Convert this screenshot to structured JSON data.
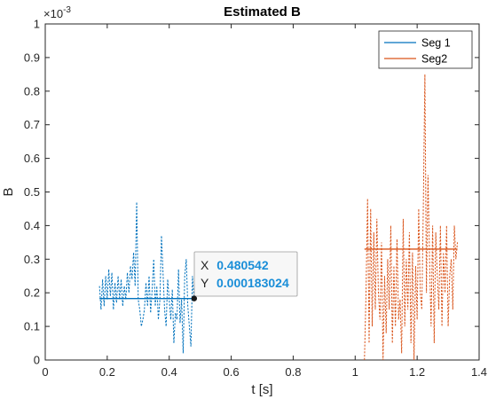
{
  "colors": {
    "series1": "#0072BD",
    "series2": "#D95319",
    "axis": "#262626",
    "datatip_value": "#1a8ed8"
  },
  "chart_data": {
    "type": "line",
    "title": "Estimated B",
    "xlabel": "t [s]",
    "ylabel": "B",
    "y_exponent_label": "×10",
    "y_exponent": "-3",
    "xlim": [
      0,
      1.4
    ],
    "ylim": [
      0,
      0.001
    ],
    "xticks": [
      0,
      0.2,
      0.4,
      0.6,
      0.8,
      1,
      1.2,
      1.4
    ],
    "xtick_labels": [
      "0",
      "0.2",
      "0.4",
      "0.6",
      "0.8",
      "1",
      "1.2",
      "1.4"
    ],
    "yticks": [
      0,
      0.0001,
      0.0002,
      0.0003,
      0.0004,
      0.0005,
      0.0006,
      0.0007,
      0.0008,
      0.0009,
      0.001
    ],
    "ytick_labels": [
      "0",
      "0.1",
      "0.2",
      "0.3",
      "0.4",
      "0.5",
      "0.6",
      "0.7",
      "0.8",
      "0.9",
      "1"
    ],
    "grid": false,
    "legend_position": "top-right",
    "legend": [
      "Seg 1",
      "Seg2"
    ],
    "series": [
      {
        "name": "Seg 1",
        "color_key": "series1",
        "mean_line": {
          "x": [
            0.175,
            0.48
          ],
          "y": [
            0.000183,
            0.000183
          ]
        },
        "dashed": {
          "x": [
            0.175,
            0.18,
            0.185,
            0.19,
            0.195,
            0.2,
            0.205,
            0.21,
            0.215,
            0.22,
            0.225,
            0.23,
            0.235,
            0.24,
            0.245,
            0.25,
            0.255,
            0.26,
            0.265,
            0.27,
            0.275,
            0.28,
            0.285,
            0.29,
            0.295,
            0.3,
            0.305,
            0.31,
            0.315,
            0.32,
            0.325,
            0.33,
            0.335,
            0.34,
            0.345,
            0.35,
            0.355,
            0.36,
            0.365,
            0.37,
            0.375,
            0.38,
            0.385,
            0.39,
            0.395,
            0.4,
            0.405,
            0.41,
            0.415,
            0.42,
            0.425,
            0.43,
            0.435,
            0.44,
            0.445,
            0.45,
            0.455,
            0.46,
            0.465,
            0.47,
            0.475,
            0.48
          ],
          "y": [
            0.00022,
            0.00015,
            0.00024,
            0.00016,
            0.00025,
            0.00018,
            0.00027,
            0.00019,
            0.00026,
            0.00015,
            0.00023,
            0.00017,
            0.00025,
            0.00018,
            0.00024,
            0.00016,
            0.00022,
            0.00018,
            0.00026,
            0.0002,
            0.00028,
            0.00024,
            0.00032,
            0.00022,
            0.00047,
            0.00018,
            0.00015,
            0.0001,
            0.00012,
            0.00015,
            0.00023,
            0.00016,
            0.00025,
            0.00014,
            0.00021,
            0.0003,
            0.00016,
            0.00022,
            0.00012,
            0.00018,
            0.00037,
            0.00026,
            0.00015,
            0.0001,
            0.00024,
            0.00018,
            0.00012,
            0.00021,
            5e-05,
            0.00014,
            0.00012,
            0.00027,
            0.00011,
            0.00018,
            2e-05,
            0.00025,
            0.0003,
            0.00016,
            0.0001,
            4e-05,
            0.00025,
            0.00018
          ]
        }
      },
      {
        "name": "Seg2",
        "color_key": "series2",
        "mean_line": {
          "x": [
            1.03,
            1.33
          ],
          "y": [
            0.00033,
            0.00033
          ]
        },
        "dashed": {
          "x": [
            1.03,
            1.035,
            1.04,
            1.045,
            1.05,
            1.055,
            1.06,
            1.065,
            1.07,
            1.075,
            1.08,
            1.085,
            1.09,
            1.095,
            1.1,
            1.105,
            1.11,
            1.115,
            1.12,
            1.125,
            1.13,
            1.135,
            1.14,
            1.145,
            1.15,
            1.155,
            1.16,
            1.165,
            1.17,
            1.175,
            1.18,
            1.185,
            1.19,
            1.195,
            1.2,
            1.205,
            1.21,
            1.215,
            1.22,
            1.225,
            1.23,
            1.235,
            1.24,
            1.245,
            1.25,
            1.255,
            1.26,
            1.265,
            1.27,
            1.275,
            1.28,
            1.285,
            1.29,
            1.295,
            1.3,
            1.305,
            1.31,
            1.315,
            1.32,
            1.325,
            1.33
          ],
          "y": [
            0,
            0.0002,
            0.00048,
            5e-05,
            0.00045,
            0.0001,
            0.00038,
            0.00015,
            0.00042,
            0.0002,
            0.00012,
            0.00035,
            0,
            0.00025,
            8e-05,
            0.0003,
            0.00015,
            0.0004,
            5e-05,
            0.00028,
            0.0001,
            0.00036,
            0.00012,
            0.00018,
            2e-05,
            0.00042,
            0.0001,
            0.0003,
            0.00015,
            0.00038,
            5e-05,
            0.00032,
            0,
            0.00028,
            0.00012,
            0.00045,
            0.0002,
            0.00015,
            0.00046,
            0.00085,
            0.0002,
            0.00055,
            0.0003,
            0.0001,
            0.0004,
            5e-05,
            0.00038,
            0.00025,
            0.00015,
            0.0004,
            0.0001,
            0.00032,
            0.0002,
            0.0004,
            0.0001,
            0.00025,
            0.0003,
            0.00015,
            0.0004,
            0.0003,
            0.00035
          ]
        }
      }
    ],
    "datatip": {
      "x_label": "X",
      "x_value": "0.480542",
      "y_label": "Y",
      "y_value": "0.000183024",
      "point": {
        "x": 0.480542,
        "y": 0.000183024
      }
    }
  }
}
